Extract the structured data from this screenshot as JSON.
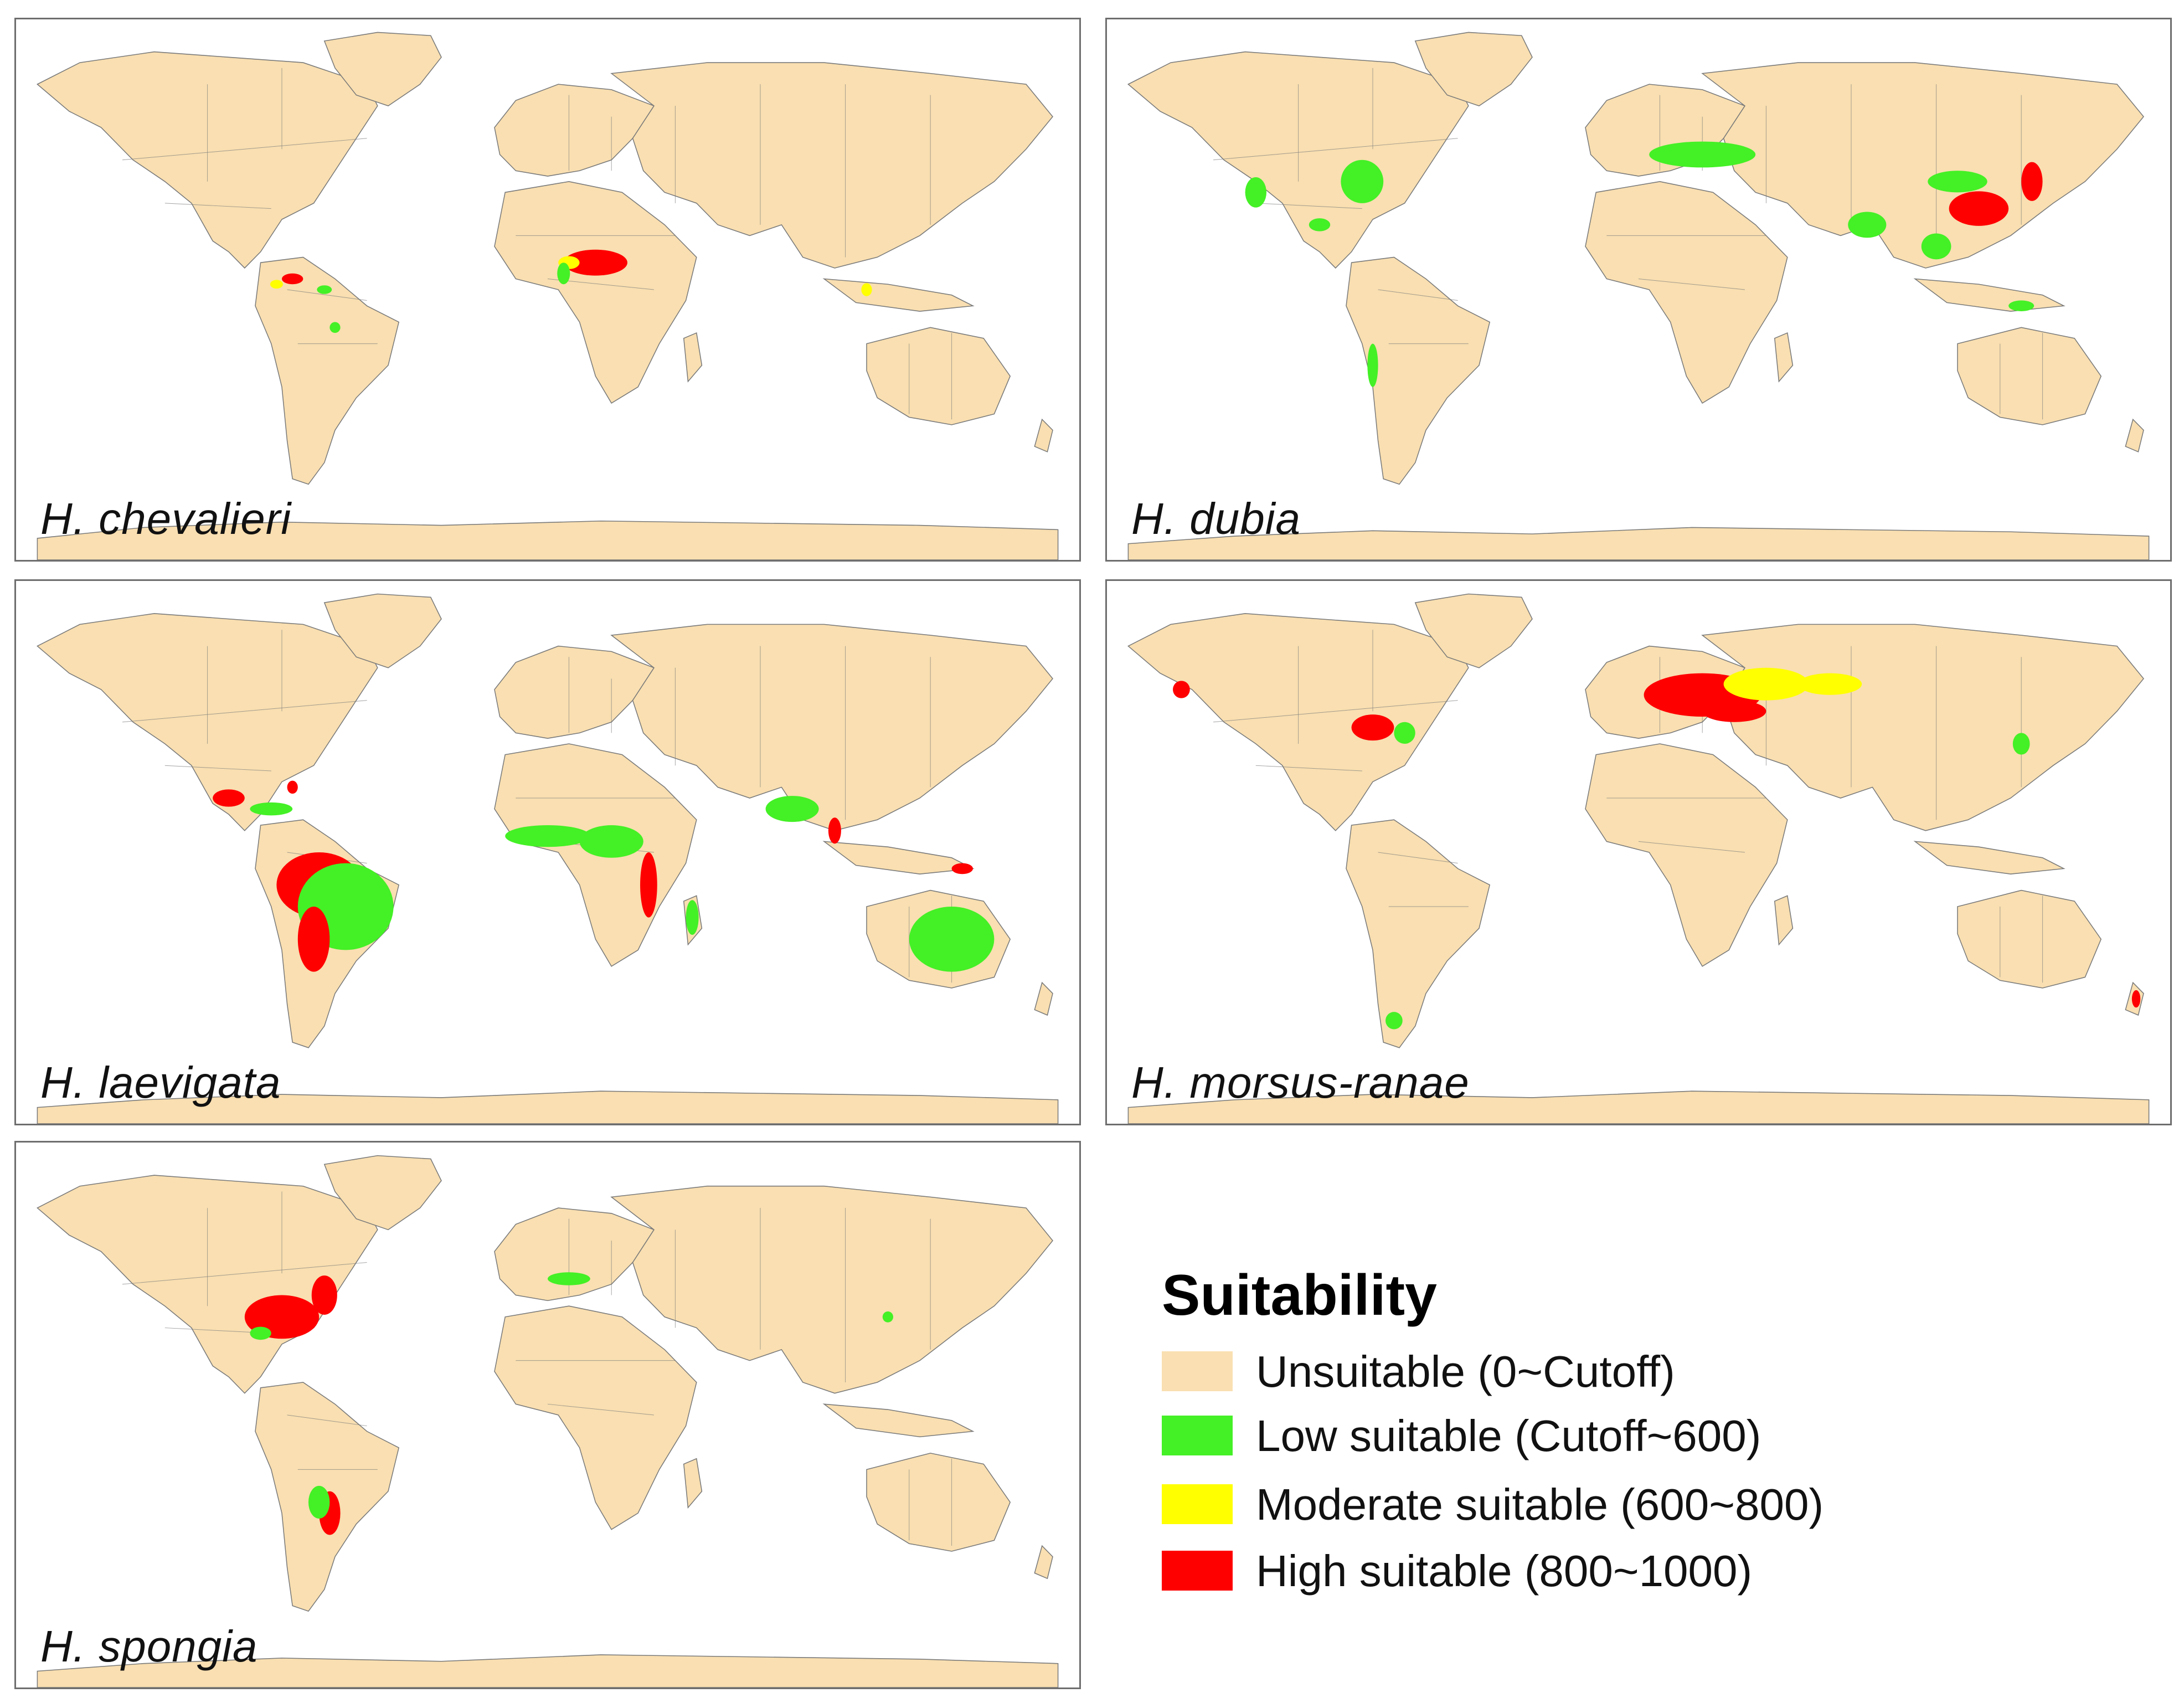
{
  "colors": {
    "unsuitable": "#f9dfb1",
    "low": "#44f026",
    "moderate": "#ffff00",
    "high": "#fe0000",
    "border": "#7a7a7a"
  },
  "panels": [
    {
      "id": "chevalieri",
      "species": "H. chevalieri",
      "show_antarctica_sheet": true
    },
    {
      "id": "dubia",
      "species": "H. dubia",
      "show_antarctica_sheet": false
    },
    {
      "id": "laevigata",
      "species": "H. laevigata",
      "show_antarctica_sheet": false
    },
    {
      "id": "morsus",
      "species": "H. morsus-ranae",
      "show_antarctica_sheet": false
    },
    {
      "id": "spongia",
      "species": "H. spongia",
      "show_antarctica_sheet": false
    }
  ],
  "legend": {
    "title": "Suitability",
    "items": [
      {
        "key": "unsuitable",
        "label": "Unsuitable (0~Cutoff)"
      },
      {
        "key": "low",
        "label": "Low suitable (Cutoff~600)"
      },
      {
        "key": "moderate",
        "label": "Moderate suitable (600~800)"
      },
      {
        "key": "high",
        "label": "High suitable (800~1000)"
      }
    ]
  }
}
